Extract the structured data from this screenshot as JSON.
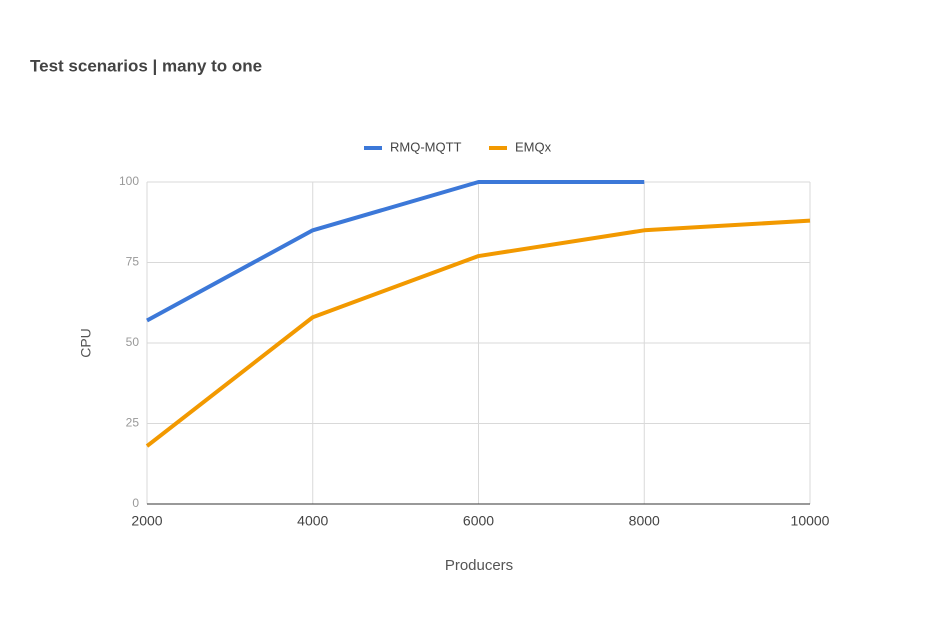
{
  "chart_data": {
    "type": "line",
    "title": "Test scenarios | many to one",
    "x": [
      2000,
      4000,
      6000,
      8000,
      10000
    ],
    "series": [
      {
        "name": "RMQ-MQTT",
        "color": "#3c78d8",
        "values": [
          57,
          85,
          100,
          100,
          null
        ]
      },
      {
        "name": "EMQx",
        "color": "#f29900",
        "values": [
          18,
          58,
          77,
          85,
          88
        ]
      }
    ],
    "xlim": [
      2000,
      10000
    ],
    "xticks": [
      2000,
      4000,
      6000,
      8000,
      10000
    ],
    "ylim": [
      0,
      100
    ],
    "yticks": [
      0,
      25,
      50,
      75,
      100
    ],
    "x_label": "Producers",
    "y_label": "CPU",
    "grid": true,
    "legend": "top"
  }
}
